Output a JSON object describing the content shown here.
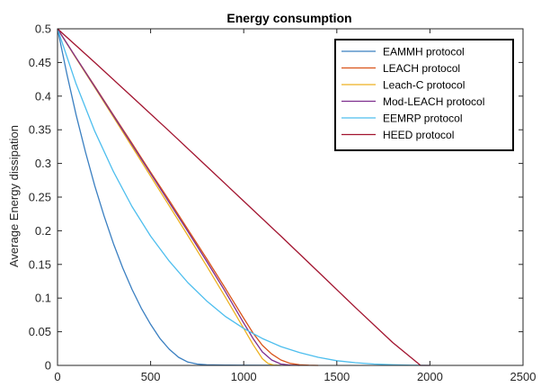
{
  "chart_data": {
    "type": "line",
    "title": "Energy consumption",
    "xlabel": "",
    "ylabel": "Average Energy dissipation",
    "xlim": [
      0,
      2500
    ],
    "ylim": [
      0,
      0.5
    ],
    "xticks": [
      "0",
      "500",
      "1000",
      "1500",
      "2000",
      "2500"
    ],
    "yticks": [
      "0",
      "0.05",
      "0.1",
      "0.15",
      "0.2",
      "0.25",
      "0.3",
      "0.35",
      "0.4",
      "0.45",
      "0.5"
    ],
    "legend_position": "top-right",
    "grid": false,
    "series": [
      {
        "name": "EAMMH protocol",
        "color": "#3A7FC1",
        "x": [
          0,
          50,
          100,
          150,
          200,
          250,
          300,
          350,
          400,
          450,
          500,
          550,
          600,
          650,
          700,
          750,
          800,
          900,
          1000,
          1200
        ],
        "y": [
          0.5,
          0.433,
          0.372,
          0.317,
          0.267,
          0.222,
          0.181,
          0.145,
          0.113,
          0.085,
          0.061,
          0.04,
          0.024,
          0.012,
          0.005,
          0.002,
          0.001,
          0.0005,
          0.0003,
          0.0002
        ]
      },
      {
        "name": "LEACH protocol",
        "color": "#D95319",
        "x": [
          0,
          100,
          200,
          300,
          400,
          500,
          600,
          700,
          800,
          900,
          1000,
          1050,
          1100,
          1150,
          1200,
          1250,
          1300,
          1350,
          1400
        ],
        "y": [
          0.5,
          0.457,
          0.415,
          0.372,
          0.33,
          0.287,
          0.245,
          0.202,
          0.159,
          0.115,
          0.07,
          0.048,
          0.03,
          0.017,
          0.008,
          0.003,
          0.001,
          0.0003,
          0.0
        ]
      },
      {
        "name": "Leach-C protocol",
        "color": "#EDB120",
        "x": [
          0,
          100,
          200,
          300,
          400,
          500,
          600,
          700,
          800,
          900,
          1000,
          1050,
          1100,
          1130,
          1160,
          1200
        ],
        "y": [
          0.5,
          0.456,
          0.413,
          0.369,
          0.325,
          0.281,
          0.237,
          0.193,
          0.148,
          0.102,
          0.055,
          0.031,
          0.01,
          0.003,
          0.0005,
          0.0
        ]
      },
      {
        "name": "Mod-LEACH protocol",
        "color": "#7E2F8E",
        "x": [
          0,
          100,
          200,
          300,
          400,
          500,
          600,
          700,
          800,
          900,
          1000,
          1050,
          1100,
          1150,
          1200,
          1250,
          1300
        ],
        "y": [
          0.5,
          0.457,
          0.414,
          0.371,
          0.328,
          0.285,
          0.242,
          0.199,
          0.155,
          0.11,
          0.063,
          0.04,
          0.02,
          0.008,
          0.002,
          0.0005,
          0.0
        ]
      },
      {
        "name": "EEMRP protocol",
        "color": "#4DBEEE",
        "x": [
          0,
          100,
          200,
          300,
          400,
          500,
          600,
          700,
          800,
          900,
          1000,
          1100,
          1200,
          1300,
          1400,
          1500,
          1600,
          1700,
          1800,
          1900,
          2000
        ],
        "y": [
          0.5,
          0.418,
          0.348,
          0.288,
          0.236,
          0.192,
          0.155,
          0.123,
          0.096,
          0.073,
          0.055,
          0.04,
          0.028,
          0.019,
          0.012,
          0.007,
          0.004,
          0.002,
          0.001,
          0.0003,
          0.0
        ]
      },
      {
        "name": "HEED protocol",
        "color": "#A2142F",
        "x": [
          0,
          200,
          400,
          600,
          800,
          1000,
          1200,
          1400,
          1600,
          1800,
          1950,
          2000
        ],
        "y": [
          0.5,
          0.45,
          0.399,
          0.348,
          0.296,
          0.244,
          0.192,
          0.139,
          0.086,
          0.034,
          0.0,
          0.0
        ]
      }
    ]
  }
}
